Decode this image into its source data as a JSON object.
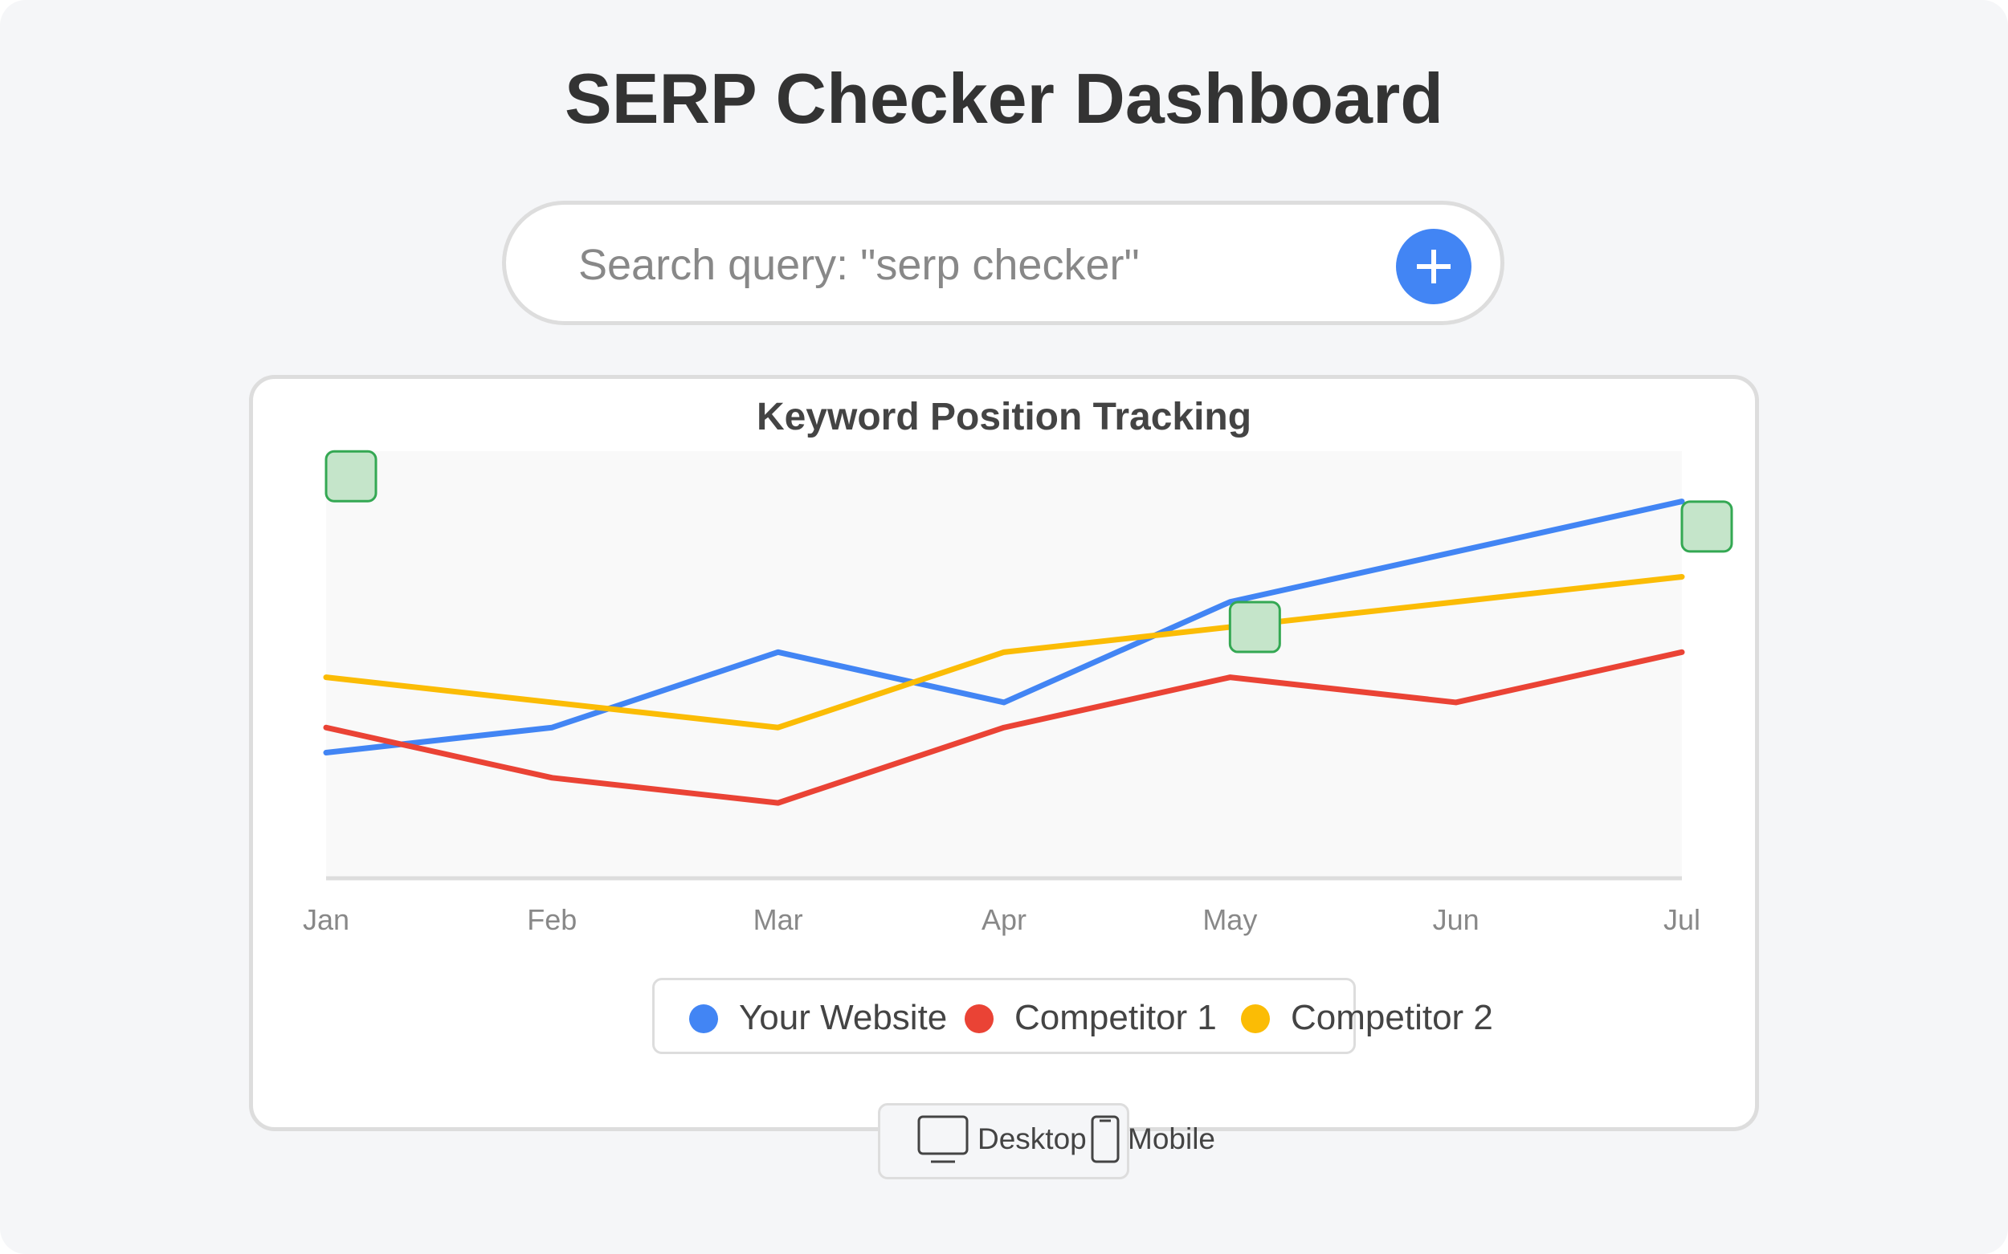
{
  "header": {
    "title": "SERP Checker Dashboard"
  },
  "search": {
    "placeholder": "Search query: \"serp checker\"",
    "value": "",
    "add_icon": "plus-icon"
  },
  "chart_data": {
    "type": "line",
    "title": "Keyword Position Tracking",
    "xlabel": "",
    "ylabel": "",
    "categories": [
      "Jan",
      "Feb",
      "Mar",
      "Apr",
      "May",
      "Jun",
      "Jul"
    ],
    "ylim": [
      0,
      17
    ],
    "grid": false,
    "legend": "bottom-center",
    "series": [
      {
        "name": "Your Website",
        "color": "#4285f4",
        "values": [
          5,
          6,
          9,
          7,
          11,
          13,
          15
        ]
      },
      {
        "name": "Competitor 1",
        "color": "#ea4335",
        "values": [
          6,
          4,
          3,
          6,
          8,
          7,
          9
        ]
      },
      {
        "name": "Competitor 2",
        "color": "#fbbc05",
        "values": [
          8,
          7,
          6,
          9,
          10,
          11,
          12
        ]
      }
    ],
    "annotations": [
      {
        "x": "Jan",
        "y": 16,
        "marker": "square",
        "color": "#34a853"
      },
      {
        "x": "May",
        "y": 10,
        "marker": "square",
        "color": "#34a853"
      },
      {
        "x": "Jul",
        "y": 14,
        "marker": "square",
        "color": "#34a853"
      }
    ]
  },
  "device_toggle": {
    "desktop": {
      "label": "Desktop",
      "icon": "desktop-icon"
    },
    "mobile": {
      "label": "Mobile",
      "icon": "mobile-icon"
    }
  }
}
